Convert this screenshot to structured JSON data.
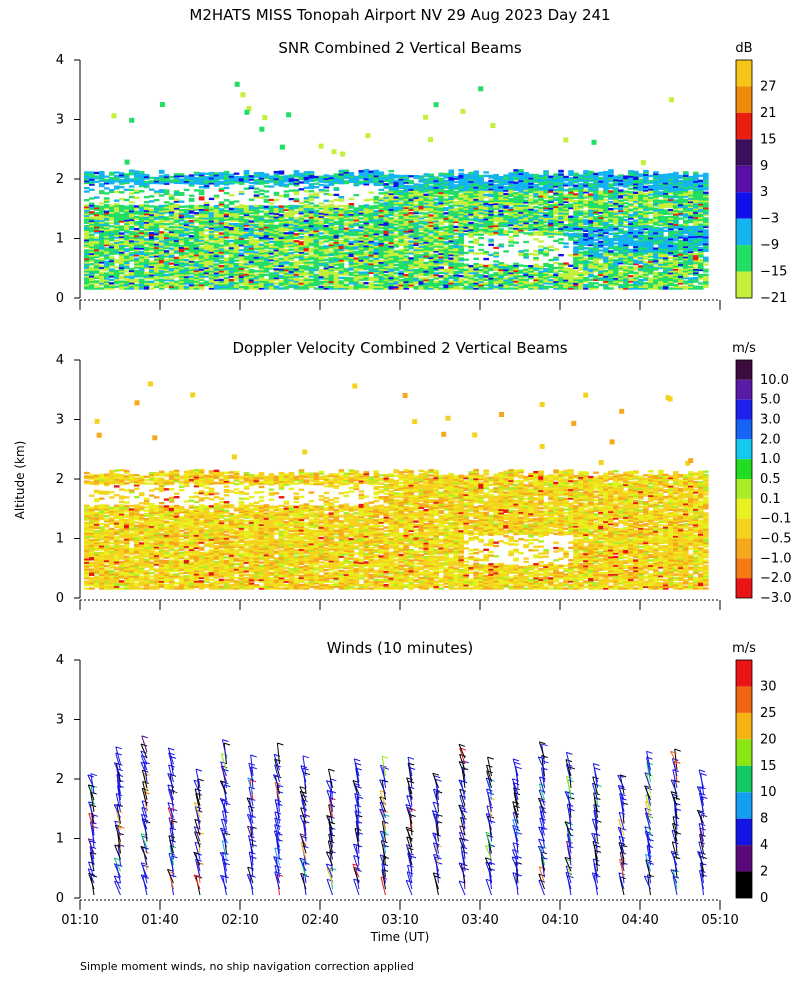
{
  "figure": {
    "title": "M2HATS MISS Tonopah Airport NV  29 Aug 2023 Day 241",
    "ylabel": "Altitude (km)",
    "xlabel": "Time (UT)",
    "footnote": "Simple moment winds, no ship navigation correction applied"
  },
  "chart_data": [
    {
      "type": "heatmap",
      "title": "SNR Combined 2 Vertical Beams",
      "unit": "dB",
      "ylim": [
        0,
        4
      ],
      "yticks": [
        "0",
        "1",
        "2",
        "3",
        "4"
      ],
      "colorbar": {
        "labels": [
          "27",
          "21",
          "15",
          "9",
          "3",
          "−3",
          "−9",
          "−15",
          "−21"
        ],
        "colors": [
          "#f5c518",
          "#f08a0a",
          "#ea1d0f",
          "#3b0f5e",
          "#5a0ea8",
          "#1010ee",
          "#14b4f0",
          "#22dd66",
          "#c4f03c"
        ]
      },
      "layers": [
        {
          "ymin": 0.15,
          "ymax": 2.2,
          "dominant": "-15 to -21 dB"
        },
        {
          "ymin": 1.8,
          "ymax": 2.2,
          "dominant": "-9 dB"
        }
      ]
    },
    {
      "type": "heatmap",
      "title": "Doppler Velocity Combined 2 Vertical Beams",
      "unit": "m/s",
      "ylim": [
        0,
        4
      ],
      "yticks": [
        "0",
        "1",
        "2",
        "3",
        "4"
      ],
      "colorbar": {
        "labels": [
          "10.0",
          "5.0",
          "3.0",
          "2.0",
          "1.0",
          "0.5",
          "0.1",
          "−0.1",
          "−0.5",
          "−1.0",
          "−2.0",
          "−3.0"
        ],
        "colors": [
          "#3c0a3c",
          "#5a1aa8",
          "#2020ee",
          "#1464f5",
          "#14c8f0",
          "#22dd22",
          "#a8ee28",
          "#e8f01e",
          "#f5d21e",
          "#f5a81e",
          "#f57a14",
          "#ea1414"
        ]
      },
      "layers": [
        {
          "ymin": 0.15,
          "ymax": 2.2,
          "dominant": "-0.1 to -1.0 m/s"
        }
      ]
    },
    {
      "type": "scatter",
      "title": "Winds (10 minutes)",
      "unit": "m/s",
      "ylim": [
        0,
        4
      ],
      "yticks": [
        "0",
        "1",
        "2",
        "3",
        "4"
      ],
      "xticks": [
        "01:10",
        "01:40",
        "02:10",
        "02:40",
        "03:10",
        "03:40",
        "04:10",
        "04:40",
        "05:10"
      ],
      "x_range": [
        "01:10",
        "05:10"
      ],
      "colorbar": {
        "labels": [
          "30",
          "25",
          "20",
          "15",
          "10",
          "8",
          "4",
          "2",
          "0"
        ],
        "colors": [
          "#ea1414",
          "#f06414",
          "#f5b414",
          "#8ce614",
          "#14c864",
          "#14a0f0",
          "#1414e6",
          "#5a0a78",
          "#000000"
        ]
      }
    }
  ]
}
